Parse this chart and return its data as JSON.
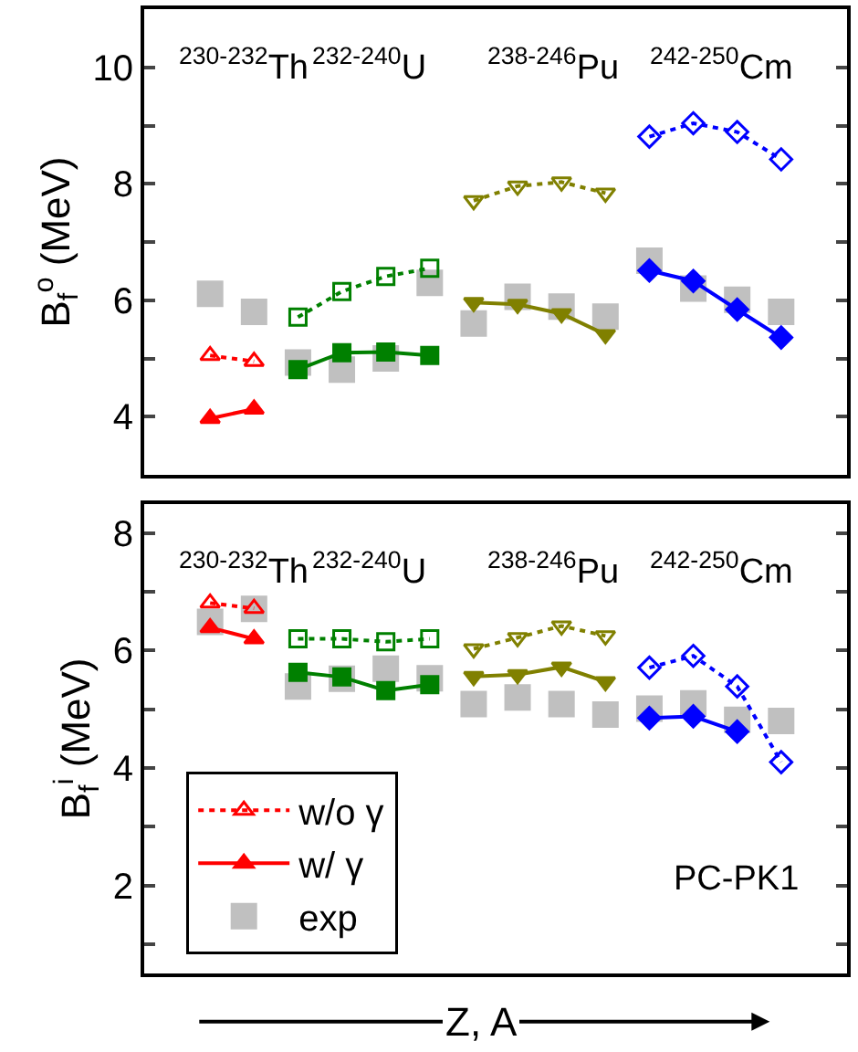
{
  "chart_data": [
    {
      "type": "line",
      "ylabel": "B$_{f}$$^{o}$ (MeV)",
      "ylim": [
        3,
        11
      ],
      "yticks": [
        4,
        {
          "value": 5,
          "label": null
        },
        6,
        {
          "value": 7,
          "label": null
        },
        8,
        {
          "value": 9,
          "label": null
        },
        10
      ],
      "categories": [
        null,
        null,
        null,
        null,
        null,
        null,
        null,
        null,
        null,
        null,
        null,
        null,
        null,
        null,
        null,
        null
      ],
      "tick_labels": "y",
      "annotations": [
        "$^{230-232}$Th",
        "$^{232-240}$U",
        "$^{238-246}$Pu",
        "$^{242-250}$Cm"
      ],
      "series": [
        {
          "color": "#ff0000",
          "marker": "triangle-open",
          "line_style": "dotted",
          "values": [
            null,
            5.05,
            4.95,
            null,
            null,
            null,
            null,
            null,
            null,
            null,
            null,
            null,
            null,
            null,
            null,
            null
          ]
        },
        {
          "color": "#ff0000",
          "marker": "triangle",
          "line_style": "solid",
          "values": [
            null,
            3.97,
            4.13,
            null,
            null,
            null,
            null,
            null,
            null,
            null,
            null,
            null,
            null,
            null,
            null,
            null
          ]
        },
        {
          "type": "scatter",
          "color": "#c0c0c0",
          "marker": "square",
          "values": [
            null,
            6.11,
            5.8,
            4.93,
            4.81,
            5.0,
            6.3,
            5.6,
            6.06,
            5.89,
            5.72,
            6.68,
            6.2,
            6.01,
            5.8,
            null
          ]
        },
        {
          "color": "#008000",
          "marker": "square-open",
          "line_style": "dotted",
          "values": [
            null,
            null,
            null,
            5.71,
            6.15,
            6.41,
            6.55,
            null,
            null,
            null,
            null,
            null,
            null,
            null,
            null,
            null
          ]
        },
        {
          "color": "#008000",
          "marker": "square",
          "line_style": "solid",
          "values": [
            null,
            null,
            null,
            4.81,
            5.1,
            5.11,
            5.05,
            null,
            null,
            null,
            null,
            null,
            null,
            null,
            null,
            null
          ]
        },
        {
          "color": "#808000",
          "marker": "triangle-down-open",
          "line_style": "dotted",
          "values": [
            null,
            null,
            null,
            null,
            null,
            null,
            null,
            7.71,
            7.96,
            8.03,
            7.84,
            null,
            null,
            null,
            null,
            null
          ]
        },
        {
          "color": "#808000",
          "marker": "triangle-down",
          "line_style": "solid",
          "values": [
            null,
            null,
            null,
            null,
            null,
            null,
            null,
            5.96,
            5.93,
            5.77,
            5.41,
            null,
            null,
            null,
            null,
            null
          ]
        },
        {
          "color": "#0000ff",
          "marker": "diamond-open",
          "line_style": "dotted",
          "values": [
            null,
            null,
            null,
            null,
            null,
            null,
            null,
            null,
            null,
            null,
            null,
            8.81,
            9.04,
            8.89,
            8.42,
            null
          ]
        },
        {
          "color": "#0000ff",
          "marker": "diamond",
          "line_style": "solid",
          "values": [
            null,
            null,
            null,
            null,
            null,
            null,
            null,
            null,
            null,
            null,
            null,
            6.51,
            6.33,
            5.84,
            5.36,
            null
          ]
        }
      ]
    },
    {
      "type": "line",
      "ylabel": "B$_{f}$$^{i}$ (MeV)",
      "xlabel": "Z, A",
      "ylim": [
        0.5,
        8.5
      ],
      "yticks": [
        {
          "value": 1,
          "label": null
        },
        2,
        {
          "value": 3,
          "label": null
        },
        4,
        {
          "value": 5,
          "label": null
        },
        6,
        {
          "value": 7,
          "label": null
        },
        8
      ],
      "categories": [
        null,
        null,
        null,
        null,
        null,
        null,
        null,
        null,
        null,
        null,
        null,
        null,
        null,
        null,
        null,
        null
      ],
      "tick_labels": "y",
      "legend": "bottom left",
      "annotations": [
        "$^{230-232}$Th",
        "$^{232-240}$U",
        "$^{238-246}$Pu",
        "$^{242-250}$Cm",
        "PC-PK1"
      ],
      "series": [
        {
          "name": "w/o γ",
          "color": "#ff0000",
          "marker": "triangle-open",
          "line_style": "dotted",
          "values": [
            null,
            6.81,
            6.72,
            null,
            null,
            null,
            null,
            null,
            null,
            null,
            null,
            null,
            null,
            null,
            null,
            null
          ]
        },
        {
          "name": "w/ γ",
          "color": "#ff0000",
          "marker": "triangle",
          "line_style": "solid",
          "values": [
            null,
            6.39,
            6.2,
            null,
            null,
            null,
            null,
            null,
            null,
            null,
            null,
            null,
            null,
            null,
            null,
            null
          ]
        },
        {
          "name": "exp",
          "type": "scatter",
          "color": "#c0c0c0",
          "marker": "square",
          "values": [
            null,
            6.49,
            6.71,
            5.39,
            5.52,
            5.69,
            5.53,
            5.09,
            5.2,
            5.09,
            4.91,
            5.01,
            5.1,
            4.82,
            4.8,
            null
          ]
        },
        {
          "color": "#008000",
          "marker": "square-open",
          "line_style": "dotted",
          "values": [
            null,
            null,
            null,
            6.2,
            6.2,
            6.15,
            6.2,
            null,
            null,
            null,
            null,
            null,
            null,
            null,
            null,
            null
          ]
        },
        {
          "color": "#008000",
          "marker": "square",
          "line_style": "solid",
          "values": [
            null,
            null,
            null,
            5.63,
            5.55,
            5.32,
            5.42,
            null,
            null,
            null,
            null,
            null,
            null,
            null,
            null,
            null
          ]
        },
        {
          "color": "#808000",
          "marker": "triangle-down-open",
          "line_style": "dotted",
          "values": [
            null,
            null,
            null,
            null,
            null,
            null,
            null,
            6.03,
            6.22,
            6.42,
            6.25,
            null,
            null,
            null,
            null,
            null
          ]
        },
        {
          "color": "#808000",
          "marker": "triangle-down",
          "line_style": "solid",
          "values": [
            null,
            null,
            null,
            null,
            null,
            null,
            null,
            5.56,
            5.59,
            5.72,
            5.47,
            null,
            null,
            null,
            null,
            null
          ]
        },
        {
          "color": "#0000ff",
          "marker": "diamond-open",
          "line_style": "dotted",
          "values": [
            null,
            null,
            null,
            null,
            null,
            null,
            null,
            null,
            null,
            null,
            null,
            5.71,
            5.91,
            5.39,
            4.1,
            null
          ]
        },
        {
          "color": "#0000ff",
          "marker": "diamond",
          "line_style": "solid",
          "values": [
            null,
            null,
            null,
            null,
            null,
            null,
            null,
            null,
            null,
            null,
            null,
            4.85,
            4.88,
            4.62,
            null,
            null
          ]
        }
      ]
    }
  ]
}
